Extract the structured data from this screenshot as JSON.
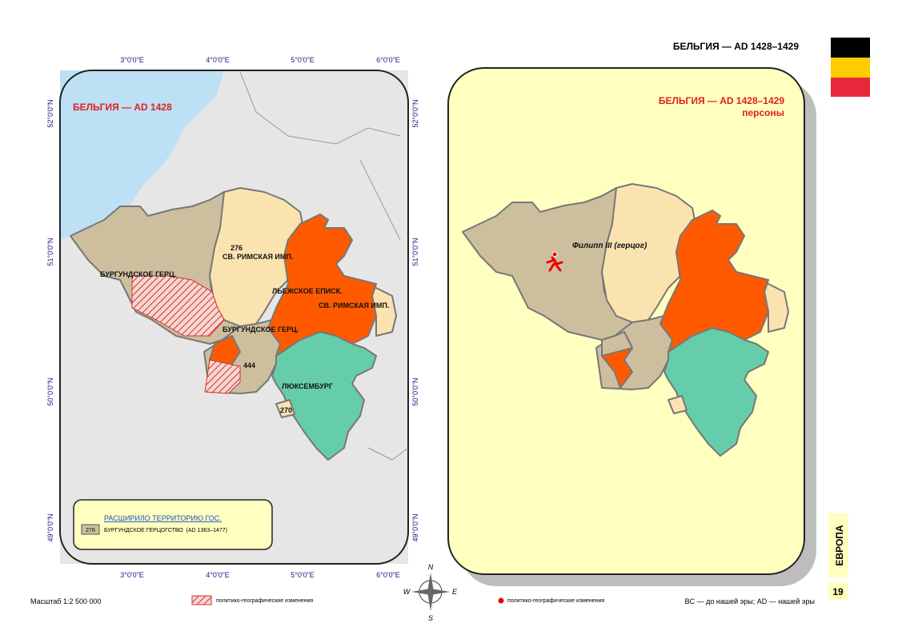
{
  "header": {
    "title": "БЕЛЬГИЯ — AD 1428–1429"
  },
  "left_map": {
    "title": "БЕЛЬГИЯ — AD 1428",
    "longitude_labels": [
      "3°0'0\"E",
      "4°0'0\"E",
      "5°0'0\"E",
      "6°0'0\"E"
    ],
    "latitude_labels": [
      "52°0'0\"N",
      "51°0'0\"N",
      "50°0'0\"N",
      "49°0'0\"N"
    ],
    "region_labels": [
      "БУРГУНДСКОЕ ГЕРЦ.",
      "276",
      "СВ. РИМСКАЯ ИМП.",
      "ЛЬЕЖСКОЕ ЕПИСК.",
      "СВ. РИМСКАЯ ИМП.",
      "БУРГУНДСКОЕ ГЕРЦ.",
      "444",
      "ЛЮКСЕМБУРГ",
      "270"
    ],
    "legend": {
      "heading": "РАСШИРИЛО ТЕРРИТОРИЮ ГОС.",
      "swatch_number": "276",
      "item": "БУРГУНДСКОЕ ГЕРЦОГСТВО  (AD 1363–1477)"
    }
  },
  "right_map": {
    "title": "БЕЛЬГИЯ — AD 1428–1429",
    "subtitle": "персоны",
    "person_label": "Филипп III (герцог)"
  },
  "compass": [
    "N",
    "W",
    "E",
    "S"
  ],
  "footer": {
    "scale": "Масштаб 1:2 500 000",
    "hatch_legend": "политико-географические изменения",
    "dot_legend": "политико-географические изменения",
    "era_note": "BC — до нашей эры; AD — нашей эры",
    "page_number": "19",
    "section": "ЕВРОПА"
  }
}
